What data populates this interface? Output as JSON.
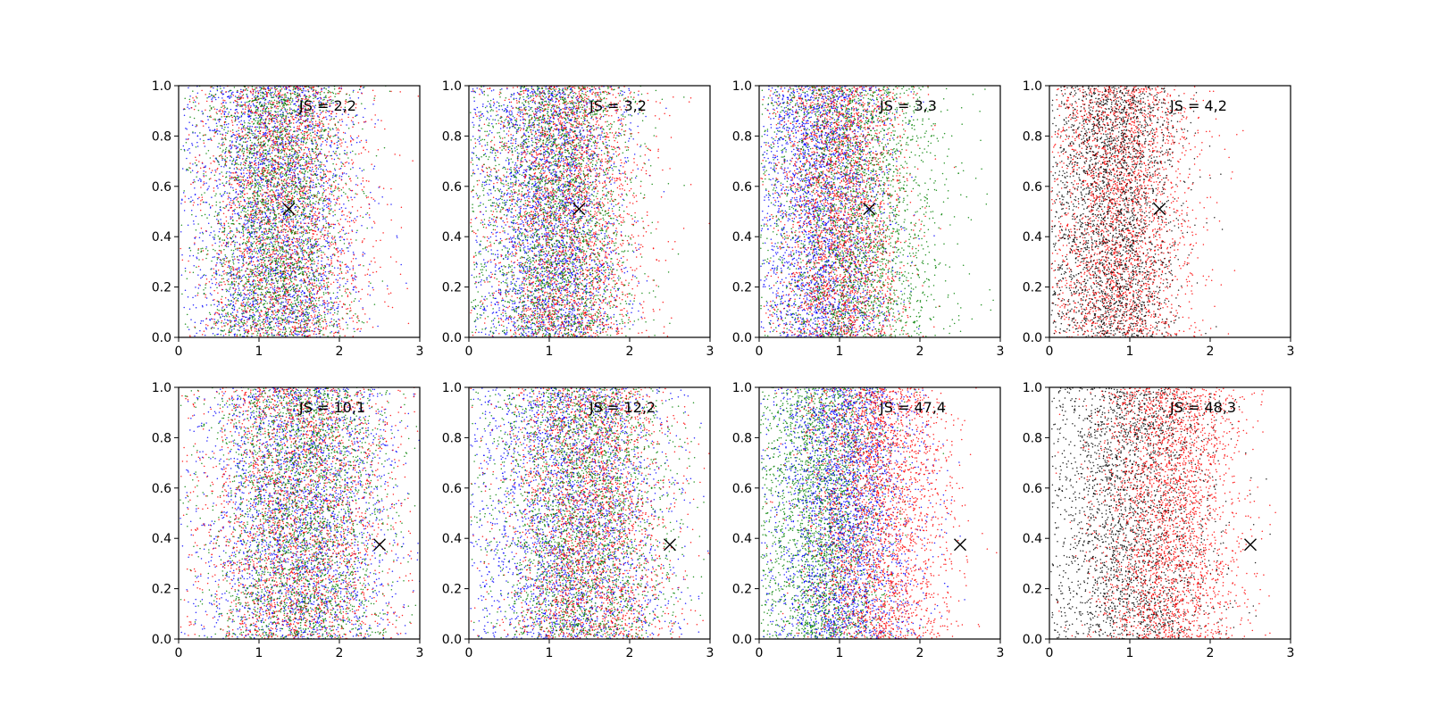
{
  "chart_data": [
    {
      "type": "scatter",
      "annotation": "JS = 2,2",
      "xlim": [
        0,
        3
      ],
      "ylim": [
        0,
        1
      ],
      "x_ticks": [
        0,
        1,
        2,
        3
      ],
      "y_ticks": [
        0.0,
        0.2,
        0.4,
        0.6,
        0.8,
        1.0
      ],
      "marker_x": {
        "x": 1.37,
        "y": 0.51
      },
      "grid": false,
      "series": [
        {
          "color": "#0000ff",
          "x_center": 1.2,
          "x_spread": 0.5
        },
        {
          "color": "#ff0000",
          "x_center": 1.3,
          "x_spread": 0.5
        },
        {
          "color": "#008000",
          "x_center": 1.2,
          "x_spread": 0.45
        }
      ]
    },
    {
      "type": "scatter",
      "annotation": "JS = 3,2",
      "xlim": [
        0,
        3
      ],
      "ylim": [
        0,
        1
      ],
      "x_ticks": [
        0,
        1,
        2,
        3
      ],
      "y_ticks": [
        0.0,
        0.2,
        0.4,
        0.6,
        0.8,
        1.0
      ],
      "marker_x": {
        "x": 1.37,
        "y": 0.51
      },
      "grid": false,
      "series": [
        {
          "color": "#0000ff",
          "x_center": 1.0,
          "x_spread": 0.45
        },
        {
          "color": "#ff0000",
          "x_center": 1.2,
          "x_spread": 0.5
        },
        {
          "color": "#008000",
          "x_center": 1.1,
          "x_spread": 0.5
        }
      ]
    },
    {
      "type": "scatter",
      "annotation": "JS = 3,3",
      "xlim": [
        0,
        3
      ],
      "ylim": [
        0,
        1
      ],
      "x_ticks": [
        0,
        1,
        2,
        3
      ],
      "y_ticks": [
        0.0,
        0.2,
        0.4,
        0.6,
        0.8,
        1.0
      ],
      "marker_x": {
        "x": 1.37,
        "y": 0.51
      },
      "grid": false,
      "series": [
        {
          "color": "#0000ff",
          "x_center": 0.8,
          "x_spread": 0.4
        },
        {
          "color": "#ff0000",
          "x_center": 1.0,
          "x_spread": 0.4
        },
        {
          "color": "#008000",
          "x_center": 1.2,
          "x_spread": 0.55
        }
      ]
    },
    {
      "type": "scatter",
      "annotation": "JS = 4,2",
      "xlim": [
        0,
        3
      ],
      "ylim": [
        0,
        1
      ],
      "x_ticks": [
        0,
        1,
        2,
        3
      ],
      "y_ticks": [
        0.0,
        0.2,
        0.4,
        0.6,
        0.8,
        1.0
      ],
      "marker_x": {
        "x": 1.37,
        "y": 0.51
      },
      "grid": false,
      "series": [
        {
          "color": "#ff0000",
          "x_center": 0.9,
          "x_spread": 0.45
        },
        {
          "color": "#000000",
          "x_center": 0.8,
          "x_spread": 0.4
        }
      ]
    },
    {
      "type": "scatter",
      "annotation": "JS = 10,1",
      "xlim": [
        0,
        3
      ],
      "ylim": [
        0,
        1
      ],
      "x_ticks": [
        0,
        1,
        2,
        3
      ],
      "y_ticks": [
        0.0,
        0.2,
        0.4,
        0.6,
        0.8,
        1.0
      ],
      "marker_x": {
        "x": 2.5,
        "y": 0.375
      },
      "grid": false,
      "series": [
        {
          "color": "#0000ff",
          "x_center": 1.5,
          "x_spread": 0.6
        },
        {
          "color": "#ff0000",
          "x_center": 1.5,
          "x_spread": 0.6
        },
        {
          "color": "#008000",
          "x_center": 1.5,
          "x_spread": 0.55
        }
      ]
    },
    {
      "type": "scatter",
      "annotation": "JS = 12,2",
      "xlim": [
        0,
        3
      ],
      "ylim": [
        0,
        1
      ],
      "x_ticks": [
        0,
        1,
        2,
        3
      ],
      "y_ticks": [
        0.0,
        0.2,
        0.4,
        0.6,
        0.8,
        1.0
      ],
      "marker_x": {
        "x": 2.5,
        "y": 0.375
      },
      "grid": false,
      "series": [
        {
          "color": "#0000ff",
          "x_center": 1.3,
          "x_spread": 0.6
        },
        {
          "color": "#ff0000",
          "x_center": 1.5,
          "x_spread": 0.5
        },
        {
          "color": "#008000",
          "x_center": 1.4,
          "x_spread": 0.55
        }
      ]
    },
    {
      "type": "scatter",
      "annotation": "JS = 47,4",
      "xlim": [
        0,
        3
      ],
      "ylim": [
        0,
        1
      ],
      "x_ticks": [
        0,
        1,
        2,
        3
      ],
      "y_ticks": [
        0.0,
        0.2,
        0.4,
        0.6,
        0.8,
        1.0
      ],
      "marker_x": {
        "x": 2.5,
        "y": 0.375
      },
      "grid": false,
      "series": [
        {
          "color": "#008000",
          "x_center": 0.8,
          "x_spread": 0.4
        },
        {
          "color": "#0000ff",
          "x_center": 1.1,
          "x_spread": 0.45
        },
        {
          "color": "#ff0000",
          "x_center": 1.5,
          "x_spread": 0.45
        }
      ]
    },
    {
      "type": "scatter",
      "annotation": "JS = 48,3",
      "xlim": [
        0,
        3
      ],
      "ylim": [
        0,
        1
      ],
      "x_ticks": [
        0,
        1,
        2,
        3
      ],
      "y_ticks": [
        0.0,
        0.2,
        0.4,
        0.6,
        0.8,
        1.0
      ],
      "marker_x": {
        "x": 2.5,
        "y": 0.375
      },
      "grid": false,
      "series": [
        {
          "color": "#000000",
          "x_center": 1.0,
          "x_spread": 0.5
        },
        {
          "color": "#ff0000",
          "x_center": 1.5,
          "x_spread": 0.45
        }
      ]
    }
  ]
}
